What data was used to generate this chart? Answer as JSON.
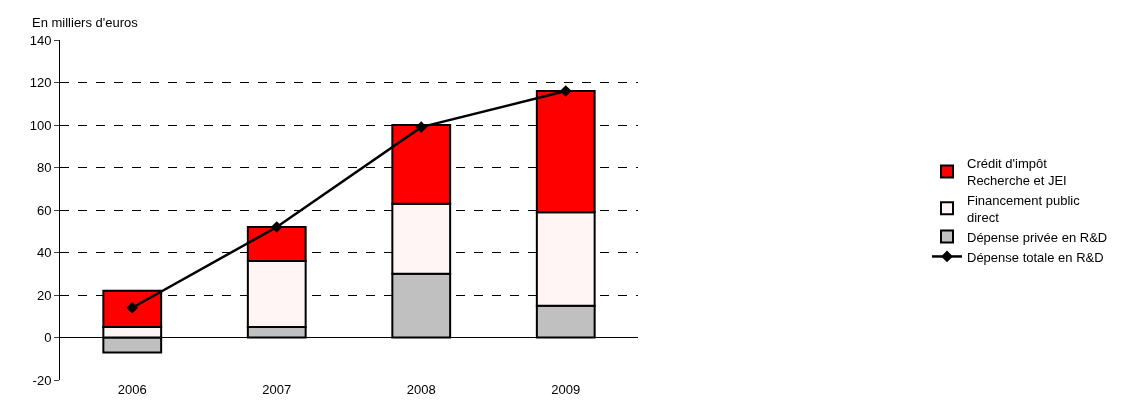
{
  "chart_data": {
    "type": "bar",
    "stacked": true,
    "ylabel": "En milliers d'euros",
    "categories": [
      "2006",
      "2007",
      "2008",
      "2009"
    ],
    "series": [
      {
        "name": "Dépense privée en R&D",
        "color": "#c0c0c0",
        "values": [
          -7,
          5,
          30,
          15
        ]
      },
      {
        "name": "Financement public direct",
        "color": "#fff5f5",
        "values": [
          5,
          31,
          33,
          44
        ]
      },
      {
        "name": "Crédit d'impôt Recherche et JEI",
        "color": "#ff0000",
        "values": [
          17,
          16,
          37,
          57
        ]
      },
      {
        "name": "Dépense totale en R&D",
        "type": "line",
        "color": "#000000",
        "marker": "diamond",
        "values": [
          14,
          52,
          99,
          116
        ]
      }
    ],
    "ylim": [
      -20,
      140
    ],
    "yticks": [
      -20,
      0,
      20,
      40,
      60,
      80,
      100,
      120,
      140
    ],
    "grid": "y",
    "legend": "right"
  }
}
